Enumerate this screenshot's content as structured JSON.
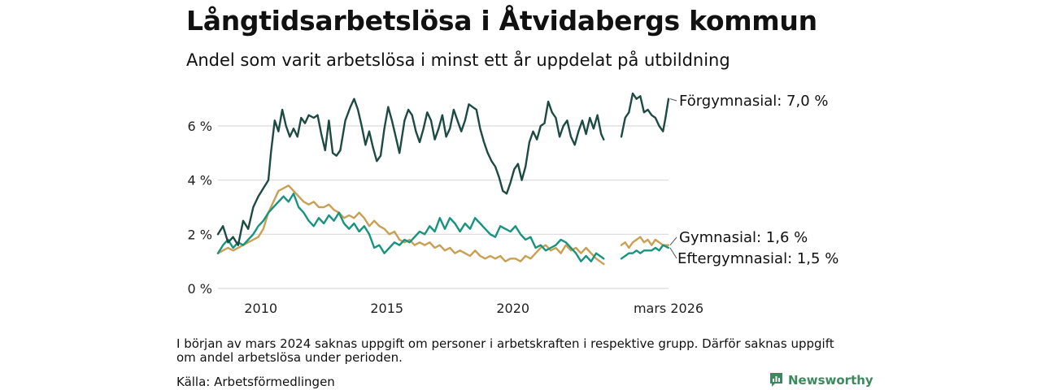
{
  "title": "Långtidsarbetslösa i Åtvidabergs kommun",
  "subtitle": "Andel som varit arbetslösa i minst ett år uppdelat på utbildning",
  "note": "I början av mars 2024 saknas uppgift om personer i arbetskraften i respektive grupp. Därför saknas uppgift om andel arbetslösa under perioden.",
  "source": "Källa: Arbetsförmedlingen",
  "brand": "Newsworthy",
  "colors": {
    "forgymnasial": "#1d4b43",
    "gymnasial": "#c9a052",
    "eftergymnasial": "#17947f",
    "grid": "#d9d9d9"
  },
  "chart_data": {
    "type": "line",
    "title": "Långtidsarbetslösa i Åtvidabergs kommun",
    "xlabel": "",
    "ylabel": "",
    "xlim": [
      2008.3,
      2026.17
    ],
    "ylim": [
      0,
      7.2
    ],
    "y_ticks": [
      {
        "v": 0,
        "label": "0 %"
      },
      {
        "v": 2,
        "label": "2 %"
      },
      {
        "v": 4,
        "label": "4 %"
      },
      {
        "v": 6,
        "label": "6 %"
      }
    ],
    "x_ticks": [
      {
        "v": 2010,
        "label": "2010"
      },
      {
        "v": 2015,
        "label": "2015"
      },
      {
        "v": 2020,
        "label": "2020"
      },
      {
        "v": 2026.17,
        "label": "mars 2026"
      }
    ],
    "gap": [
      2023.6,
      2024.3
    ],
    "series": [
      {
        "name": "Förgymnasial",
        "end_label": "Förgymnasial: 7,0 %",
        "color_key": "forgymnasial",
        "points": [
          [
            2008.3,
            2.0
          ],
          [
            2008.5,
            2.3
          ],
          [
            2008.7,
            1.7
          ],
          [
            2008.9,
            1.9
          ],
          [
            2009.1,
            1.6
          ],
          [
            2009.3,
            2.5
          ],
          [
            2009.5,
            2.2
          ],
          [
            2009.7,
            3.0
          ],
          [
            2009.9,
            3.4
          ],
          [
            2010.1,
            3.7
          ],
          [
            2010.3,
            4.0
          ],
          [
            2010.4,
            5.0
          ],
          [
            2010.55,
            6.2
          ],
          [
            2010.7,
            5.8
          ],
          [
            2010.85,
            6.6
          ],
          [
            2011.0,
            6.0
          ],
          [
            2011.15,
            5.6
          ],
          [
            2011.3,
            5.9
          ],
          [
            2011.45,
            5.6
          ],
          [
            2011.6,
            6.3
          ],
          [
            2011.75,
            6.1
          ],
          [
            2011.9,
            6.4
          ],
          [
            2012.1,
            6.3
          ],
          [
            2012.25,
            6.4
          ],
          [
            2012.4,
            5.7
          ],
          [
            2012.55,
            5.1
          ],
          [
            2012.7,
            6.2
          ],
          [
            2012.85,
            5.0
          ],
          [
            2013.0,
            4.9
          ],
          [
            2013.15,
            5.1
          ],
          [
            2013.35,
            6.2
          ],
          [
            2013.55,
            6.7
          ],
          [
            2013.7,
            7.0
          ],
          [
            2013.85,
            6.6
          ],
          [
            2014.0,
            6.0
          ],
          [
            2014.15,
            5.3
          ],
          [
            2014.3,
            5.8
          ],
          [
            2014.45,
            5.2
          ],
          [
            2014.6,
            4.7
          ],
          [
            2014.75,
            4.9
          ],
          [
            2014.9,
            5.9
          ],
          [
            2015.05,
            6.7
          ],
          [
            2015.2,
            6.2
          ],
          [
            2015.35,
            5.6
          ],
          [
            2015.5,
            5.0
          ],
          [
            2015.7,
            6.2
          ],
          [
            2015.85,
            6.6
          ],
          [
            2016.0,
            6.4
          ],
          [
            2016.15,
            5.8
          ],
          [
            2016.3,
            5.4
          ],
          [
            2016.45,
            5.9
          ],
          [
            2016.6,
            6.5
          ],
          [
            2016.75,
            6.2
          ],
          [
            2016.9,
            5.5
          ],
          [
            2017.05,
            5.9
          ],
          [
            2017.2,
            6.4
          ],
          [
            2017.35,
            5.6
          ],
          [
            2017.5,
            5.9
          ],
          [
            2017.65,
            6.6
          ],
          [
            2017.8,
            6.2
          ],
          [
            2017.95,
            5.8
          ],
          [
            2018.1,
            6.2
          ],
          [
            2018.25,
            6.8
          ],
          [
            2018.4,
            6.7
          ],
          [
            2018.55,
            6.6
          ],
          [
            2018.7,
            5.9
          ],
          [
            2018.85,
            5.4
          ],
          [
            2019.0,
            5.0
          ],
          [
            2019.15,
            4.7
          ],
          [
            2019.3,
            4.5
          ],
          [
            2019.45,
            4.1
          ],
          [
            2019.6,
            3.6
          ],
          [
            2019.75,
            3.5
          ],
          [
            2019.9,
            3.9
          ],
          [
            2020.05,
            4.4
          ],
          [
            2020.2,
            4.6
          ],
          [
            2020.35,
            4.0
          ],
          [
            2020.5,
            4.5
          ],
          [
            2020.65,
            5.4
          ],
          [
            2020.8,
            5.8
          ],
          [
            2020.95,
            5.5
          ],
          [
            2021.1,
            6.0
          ],
          [
            2021.25,
            6.1
          ],
          [
            2021.4,
            6.9
          ],
          [
            2021.55,
            6.5
          ],
          [
            2021.7,
            6.3
          ],
          [
            2021.85,
            5.6
          ],
          [
            2022.0,
            6.0
          ],
          [
            2022.15,
            6.2
          ],
          [
            2022.3,
            5.6
          ],
          [
            2022.45,
            5.3
          ],
          [
            2022.6,
            5.8
          ],
          [
            2022.75,
            6.2
          ],
          [
            2022.9,
            5.7
          ],
          [
            2023.05,
            6.3
          ],
          [
            2023.2,
            5.9
          ],
          [
            2023.35,
            6.4
          ],
          [
            2023.5,
            5.7
          ],
          [
            2023.6,
            5.5
          ],
          null,
          [
            2024.3,
            5.6
          ],
          [
            2024.45,
            6.3
          ],
          [
            2024.6,
            6.5
          ],
          [
            2024.75,
            7.2
          ],
          [
            2024.9,
            7.0
          ],
          [
            2025.05,
            7.1
          ],
          [
            2025.2,
            6.5
          ],
          [
            2025.35,
            6.6
          ],
          [
            2025.5,
            6.4
          ],
          [
            2025.65,
            6.3
          ],
          [
            2025.8,
            6.0
          ],
          [
            2025.95,
            5.8
          ],
          [
            2026.05,
            6.3
          ],
          [
            2026.17,
            7.0
          ]
        ]
      },
      {
        "name": "Gymnasial",
        "end_label": "Gymnasial: 1,6 %",
        "color_key": "gymnasial",
        "points": [
          [
            2008.3,
            1.3
          ],
          [
            2008.5,
            1.4
          ],
          [
            2008.7,
            1.5
          ],
          [
            2008.9,
            1.4
          ],
          [
            2009.1,
            1.5
          ],
          [
            2009.3,
            1.6
          ],
          [
            2009.5,
            1.7
          ],
          [
            2009.7,
            1.8
          ],
          [
            2009.9,
            1.9
          ],
          [
            2010.1,
            2.2
          ],
          [
            2010.3,
            2.8
          ],
          [
            2010.5,
            3.2
          ],
          [
            2010.7,
            3.6
          ],
          [
            2010.9,
            3.7
          ],
          [
            2011.1,
            3.8
          ],
          [
            2011.3,
            3.6
          ],
          [
            2011.5,
            3.4
          ],
          [
            2011.7,
            3.2
          ],
          [
            2011.9,
            3.1
          ],
          [
            2012.1,
            3.2
          ],
          [
            2012.3,
            3.0
          ],
          [
            2012.5,
            3.0
          ],
          [
            2012.7,
            3.1
          ],
          [
            2012.9,
            2.9
          ],
          [
            2013.1,
            2.8
          ],
          [
            2013.3,
            2.6
          ],
          [
            2013.5,
            2.7
          ],
          [
            2013.7,
            2.6
          ],
          [
            2013.9,
            2.8
          ],
          [
            2014.1,
            2.6
          ],
          [
            2014.3,
            2.3
          ],
          [
            2014.5,
            2.5
          ],
          [
            2014.7,
            2.3
          ],
          [
            2014.9,
            2.2
          ],
          [
            2015.1,
            2.0
          ],
          [
            2015.3,
            2.1
          ],
          [
            2015.5,
            1.8
          ],
          [
            2015.7,
            1.7
          ],
          [
            2015.9,
            1.8
          ],
          [
            2016.1,
            1.6
          ],
          [
            2016.3,
            1.7
          ],
          [
            2016.5,
            1.6
          ],
          [
            2016.7,
            1.7
          ],
          [
            2016.9,
            1.5
          ],
          [
            2017.1,
            1.6
          ],
          [
            2017.3,
            1.4
          ],
          [
            2017.5,
            1.5
          ],
          [
            2017.7,
            1.3
          ],
          [
            2017.9,
            1.4
          ],
          [
            2018.1,
            1.3
          ],
          [
            2018.3,
            1.2
          ],
          [
            2018.5,
            1.4
          ],
          [
            2018.7,
            1.2
          ],
          [
            2018.9,
            1.1
          ],
          [
            2019.1,
            1.2
          ],
          [
            2019.3,
            1.1
          ],
          [
            2019.5,
            1.2
          ],
          [
            2019.7,
            1.0
          ],
          [
            2019.9,
            1.1
          ],
          [
            2020.1,
            1.1
          ],
          [
            2020.3,
            1.0
          ],
          [
            2020.5,
            1.2
          ],
          [
            2020.7,
            1.1
          ],
          [
            2020.9,
            1.3
          ],
          [
            2021.1,
            1.5
          ],
          [
            2021.3,
            1.6
          ],
          [
            2021.5,
            1.4
          ],
          [
            2021.7,
            1.5
          ],
          [
            2021.9,
            1.3
          ],
          [
            2022.1,
            1.6
          ],
          [
            2022.3,
            1.4
          ],
          [
            2022.5,
            1.5
          ],
          [
            2022.7,
            1.3
          ],
          [
            2022.9,
            1.5
          ],
          [
            2023.1,
            1.3
          ],
          [
            2023.3,
            1.1
          ],
          [
            2023.45,
            1.0
          ],
          [
            2023.6,
            0.9
          ],
          null,
          [
            2024.3,
            1.6
          ],
          [
            2024.45,
            1.7
          ],
          [
            2024.6,
            1.5
          ],
          [
            2024.75,
            1.7
          ],
          [
            2024.9,
            1.8
          ],
          [
            2025.05,
            1.9
          ],
          [
            2025.2,
            1.7
          ],
          [
            2025.35,
            1.8
          ],
          [
            2025.5,
            1.6
          ],
          [
            2025.65,
            1.8
          ],
          [
            2025.8,
            1.7
          ],
          [
            2025.95,
            1.6
          ],
          [
            2026.17,
            1.6
          ]
        ]
      },
      {
        "name": "Eftergymnasial",
        "end_label": "Eftergymnasial: 1,5 %",
        "color_key": "eftergymnasial",
        "points": [
          [
            2008.3,
            1.3
          ],
          [
            2008.5,
            1.6
          ],
          [
            2008.7,
            1.8
          ],
          [
            2008.9,
            1.5
          ],
          [
            2009.1,
            1.7
          ],
          [
            2009.3,
            1.6
          ],
          [
            2009.5,
            1.8
          ],
          [
            2009.7,
            2.0
          ],
          [
            2009.9,
            2.3
          ],
          [
            2010.1,
            2.5
          ],
          [
            2010.3,
            2.8
          ],
          [
            2010.5,
            3.0
          ],
          [
            2010.7,
            3.2
          ],
          [
            2010.9,
            3.4
          ],
          [
            2011.1,
            3.2
          ],
          [
            2011.3,
            3.5
          ],
          [
            2011.5,
            3.0
          ],
          [
            2011.7,
            2.8
          ],
          [
            2011.9,
            2.5
          ],
          [
            2012.1,
            2.3
          ],
          [
            2012.3,
            2.6
          ],
          [
            2012.5,
            2.4
          ],
          [
            2012.7,
            2.7
          ],
          [
            2012.9,
            2.5
          ],
          [
            2013.1,
            2.8
          ],
          [
            2013.3,
            2.4
          ],
          [
            2013.5,
            2.2
          ],
          [
            2013.7,
            2.4
          ],
          [
            2013.9,
            2.1
          ],
          [
            2014.1,
            2.3
          ],
          [
            2014.3,
            2.0
          ],
          [
            2014.5,
            1.5
          ],
          [
            2014.7,
            1.6
          ],
          [
            2014.9,
            1.3
          ],
          [
            2015.1,
            1.5
          ],
          [
            2015.3,
            1.7
          ],
          [
            2015.5,
            1.6
          ],
          [
            2015.7,
            1.8
          ],
          [
            2015.9,
            1.7
          ],
          [
            2016.1,
            1.9
          ],
          [
            2016.3,
            2.1
          ],
          [
            2016.5,
            2.0
          ],
          [
            2016.7,
            2.3
          ],
          [
            2016.9,
            2.1
          ],
          [
            2017.1,
            2.6
          ],
          [
            2017.3,
            2.2
          ],
          [
            2017.5,
            2.6
          ],
          [
            2017.7,
            2.4
          ],
          [
            2017.9,
            2.1
          ],
          [
            2018.1,
            2.4
          ],
          [
            2018.3,
            2.2
          ],
          [
            2018.5,
            2.6
          ],
          [
            2018.7,
            2.4
          ],
          [
            2018.9,
            2.2
          ],
          [
            2019.1,
            2.0
          ],
          [
            2019.3,
            1.9
          ],
          [
            2019.5,
            2.3
          ],
          [
            2019.7,
            2.2
          ],
          [
            2019.9,
            2.1
          ],
          [
            2020.1,
            2.3
          ],
          [
            2020.3,
            2.0
          ],
          [
            2020.5,
            1.8
          ],
          [
            2020.7,
            1.9
          ],
          [
            2020.9,
            1.5
          ],
          [
            2021.1,
            1.6
          ],
          [
            2021.3,
            1.4
          ],
          [
            2021.5,
            1.5
          ],
          [
            2021.7,
            1.6
          ],
          [
            2021.9,
            1.8
          ],
          [
            2022.1,
            1.7
          ],
          [
            2022.3,
            1.5
          ],
          [
            2022.5,
            1.3
          ],
          [
            2022.7,
            1.0
          ],
          [
            2022.9,
            1.2
          ],
          [
            2023.1,
            1.0
          ],
          [
            2023.3,
            1.3
          ],
          [
            2023.45,
            1.2
          ],
          [
            2023.6,
            1.1
          ],
          null,
          [
            2024.3,
            1.1
          ],
          [
            2024.45,
            1.2
          ],
          [
            2024.6,
            1.3
          ],
          [
            2024.75,
            1.3
          ],
          [
            2024.9,
            1.4
          ],
          [
            2025.05,
            1.3
          ],
          [
            2025.2,
            1.4
          ],
          [
            2025.35,
            1.4
          ],
          [
            2025.5,
            1.4
          ],
          [
            2025.65,
            1.5
          ],
          [
            2025.8,
            1.4
          ],
          [
            2025.95,
            1.6
          ],
          [
            2026.17,
            1.5
          ]
        ]
      }
    ]
  }
}
